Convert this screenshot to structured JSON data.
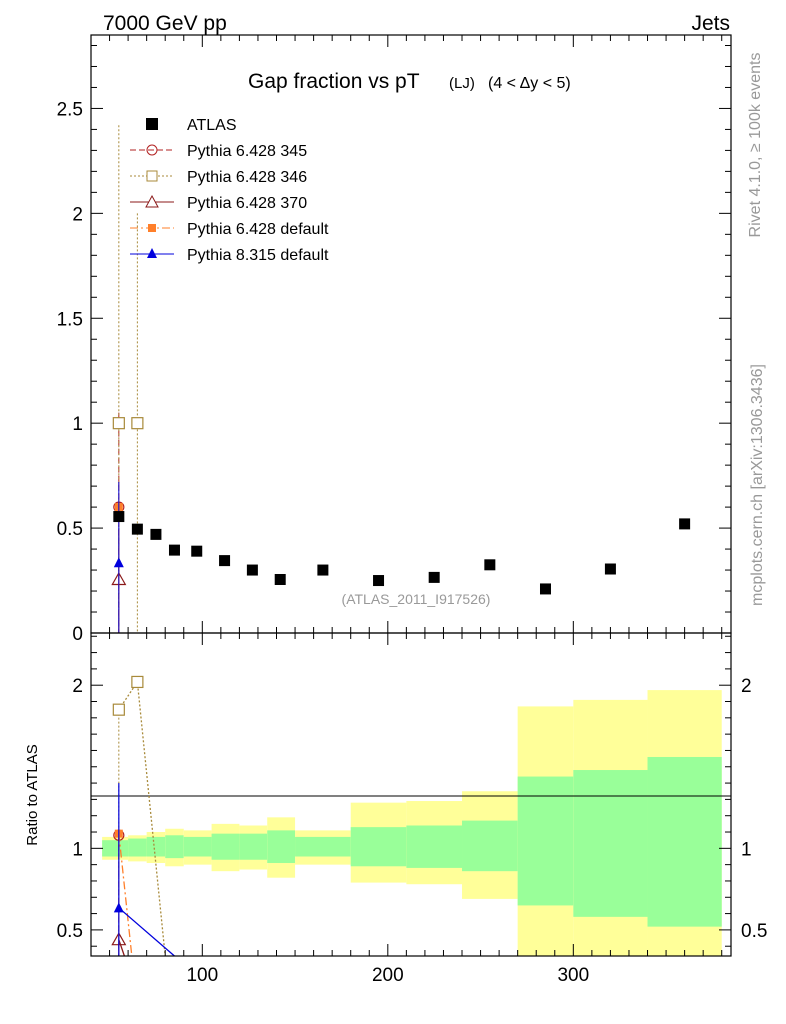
{
  "header": {
    "left": "7000 GeV pp",
    "right": "Jets"
  },
  "side": {
    "rivet": "Rivet 4.1.0, ≥ 100k events",
    "mcplots": "mcplots.cern.ch [arXiv:1306.3436]"
  },
  "watermark": "(ATLAS_2011_I917526)",
  "chart_data": {
    "type": "scatter",
    "title_main": "Gap fraction vs pT",
    "title_sub": "(LJ)",
    "title_range": "(4 < Δy < 5)",
    "xlabel": "",
    "ylabel_ratio": "Ratio to ATLAS",
    "xlim": [
      40,
      385
    ],
    "ylim_main": [
      0,
      2.85
    ],
    "ylim_ratio": [
      0.34,
      2.32
    ],
    "x_ticks": [
      100,
      200,
      300
    ],
    "y_ticks_main": [
      {
        "v": 0,
        "label": "0"
      },
      {
        "v": 0.5,
        "label": "0.5"
      },
      {
        "v": 1,
        "label": "1"
      },
      {
        "v": 1.5,
        "label": "1.5"
      },
      {
        "v": 2,
        "label": "2"
      },
      {
        "v": 2.5,
        "label": "2.5"
      }
    ],
    "y_ticks_ratio": [
      {
        "v": 0.5,
        "label": "0.5"
      },
      {
        "v": 1,
        "label": "1"
      },
      {
        "v": 2,
        "label": "2"
      }
    ],
    "atlas": {
      "name": "ATLAS",
      "x": [
        55,
        65,
        75,
        85,
        97,
        112,
        127,
        142,
        165,
        195,
        225,
        255,
        285,
        320,
        360
      ],
      "y": [
        0.555,
        0.495,
        0.47,
        0.395,
        0.39,
        0.345,
        0.3,
        0.255,
        0.3,
        0.25,
        0.265,
        0.325,
        0.21,
        0.305,
        0.52
      ]
    },
    "bands": {
      "edges": [
        46,
        60,
        70,
        80,
        90,
        105,
        120,
        135,
        150,
        180,
        210,
        240,
        270,
        300,
        340,
        380
      ],
      "inner_lo": [
        0.95,
        0.95,
        0.95,
        0.94,
        0.95,
        0.93,
        0.93,
        0.91,
        0.95,
        0.89,
        0.88,
        0.86,
        0.65,
        0.58,
        0.52
      ],
      "inner_hi": [
        1.05,
        1.06,
        1.07,
        1.08,
        1.07,
        1.09,
        1.09,
        1.11,
        1.07,
        1.13,
        1.14,
        1.17,
        1.44,
        1.48,
        1.56
      ],
      "outer_lo": [
        0.93,
        0.92,
        0.91,
        0.89,
        0.9,
        0.86,
        0.87,
        0.82,
        0.9,
        0.79,
        0.78,
        0.69,
        0.3,
        0.3,
        0.3
      ],
      "outer_hi": [
        1.07,
        1.08,
        1.1,
        1.12,
        1.11,
        1.15,
        1.14,
        1.19,
        1.11,
        1.28,
        1.29,
        1.35,
        1.87,
        1.91,
        1.97
      ],
      "inner_color": "#99ff99",
      "outer_color": "#ffff99"
    },
    "series": [
      {
        "name": "Pythia 6.428 345",
        "color": "#b22222",
        "marker": "circle",
        "dash": "6 3",
        "x": [
          55
        ],
        "y": [
          0.6
        ],
        "ratio_x": [
          55
        ],
        "ratio_y": [
          1.08
        ],
        "err_top": 1.05
      },
      {
        "name": "Pythia 6.428 346",
        "color": "#a88a3a",
        "marker": "square-open",
        "dash": "2 2",
        "x": [
          55,
          65
        ],
        "y": [
          1.0,
          1.0
        ],
        "ratio_x": [
          55,
          65,
          80
        ],
        "ratio_y": [
          1.85,
          2.02,
          0.34
        ],
        "err_top": 2.42,
        "err_top_2": 2.0
      },
      {
        "name": "Pythia 6.428 370",
        "color": "#8b1a1a",
        "marker": "triangle-open",
        "dash": "",
        "x": [
          55
        ],
        "y": [
          0.255
        ],
        "ratio_x": [
          55,
          58
        ],
        "ratio_y": [
          0.44,
          0.34
        ],
        "err_top": 0.5
      },
      {
        "name": "Pythia 6.428 default",
        "color": "#ff7f2a",
        "marker": "square-filled",
        "dash": "8 3 2 3",
        "x": [
          55
        ],
        "y": [
          0.6
        ],
        "ratio_x": [
          55,
          62
        ],
        "ratio_y": [
          1.09,
          0.34
        ],
        "err_top": 0.72
      },
      {
        "name": "Pythia 8.315 default",
        "color": "#0000dd",
        "marker": "triangle-filled",
        "dash": "",
        "x": [
          55
        ],
        "y": [
          0.335
        ],
        "ratio_x": [
          55,
          85
        ],
        "ratio_y": [
          0.635,
          0.34
        ],
        "err_top": 0.72,
        "ratio_err_top": 1.4
      }
    ]
  }
}
